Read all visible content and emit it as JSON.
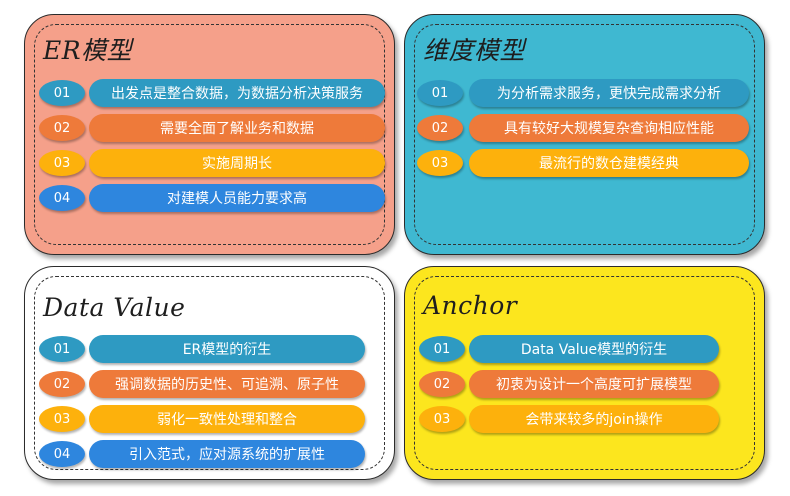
{
  "colors": {
    "blue": "#2E9AC2",
    "orange": "#EE7A3A",
    "yellow": "#FDB10C",
    "deep_blue": "#2E86DE"
  },
  "cards": [
    {
      "title": "ER模型",
      "background": "#F5A08A",
      "items": [
        {
          "num": "01",
          "text": "出发点是整合数据，为数据分析决策服务",
          "color": "blue"
        },
        {
          "num": "02",
          "text": "需要全面了解业务和数据",
          "color": "orange"
        },
        {
          "num": "03",
          "text": "实施周期长",
          "color": "yellow"
        },
        {
          "num": "04",
          "text": "对建模人员能力要求高",
          "color": "deep_blue"
        }
      ]
    },
    {
      "title": "维度模型",
      "background": "#3FB8D1",
      "items": [
        {
          "num": "01",
          "text": "为分析需求服务，更快完成需求分析",
          "color": "blue"
        },
        {
          "num": "02",
          "text": "具有较好大规模复杂查询相应性能",
          "color": "orange"
        },
        {
          "num": "03",
          "text": "最流行的数仓建模经典",
          "color": "yellow"
        }
      ]
    },
    {
      "title": "Data Value",
      "background": "#FFFFFF",
      "items": [
        {
          "num": "01",
          "text": "ER模型的衍生",
          "color": "blue"
        },
        {
          "num": "02",
          "text": "强调数据的历史性、可追溯、原子性",
          "color": "orange"
        },
        {
          "num": "03",
          "text": "弱化一致性处理和整合",
          "color": "yellow"
        },
        {
          "num": "04",
          "text": "引入范式，应对源系统的扩展性",
          "color": "deep_blue"
        }
      ]
    },
    {
      "title": "Anchor",
      "background": "#FCE61E",
      "items": [
        {
          "num": "01",
          "text": "Data Value模型的衍生",
          "color": "blue"
        },
        {
          "num": "02",
          "text": "初衷为设计一个高度可扩展模型",
          "color": "orange"
        },
        {
          "num": "03",
          "text": "会带来较多的join操作",
          "color": "yellow"
        }
      ]
    }
  ]
}
